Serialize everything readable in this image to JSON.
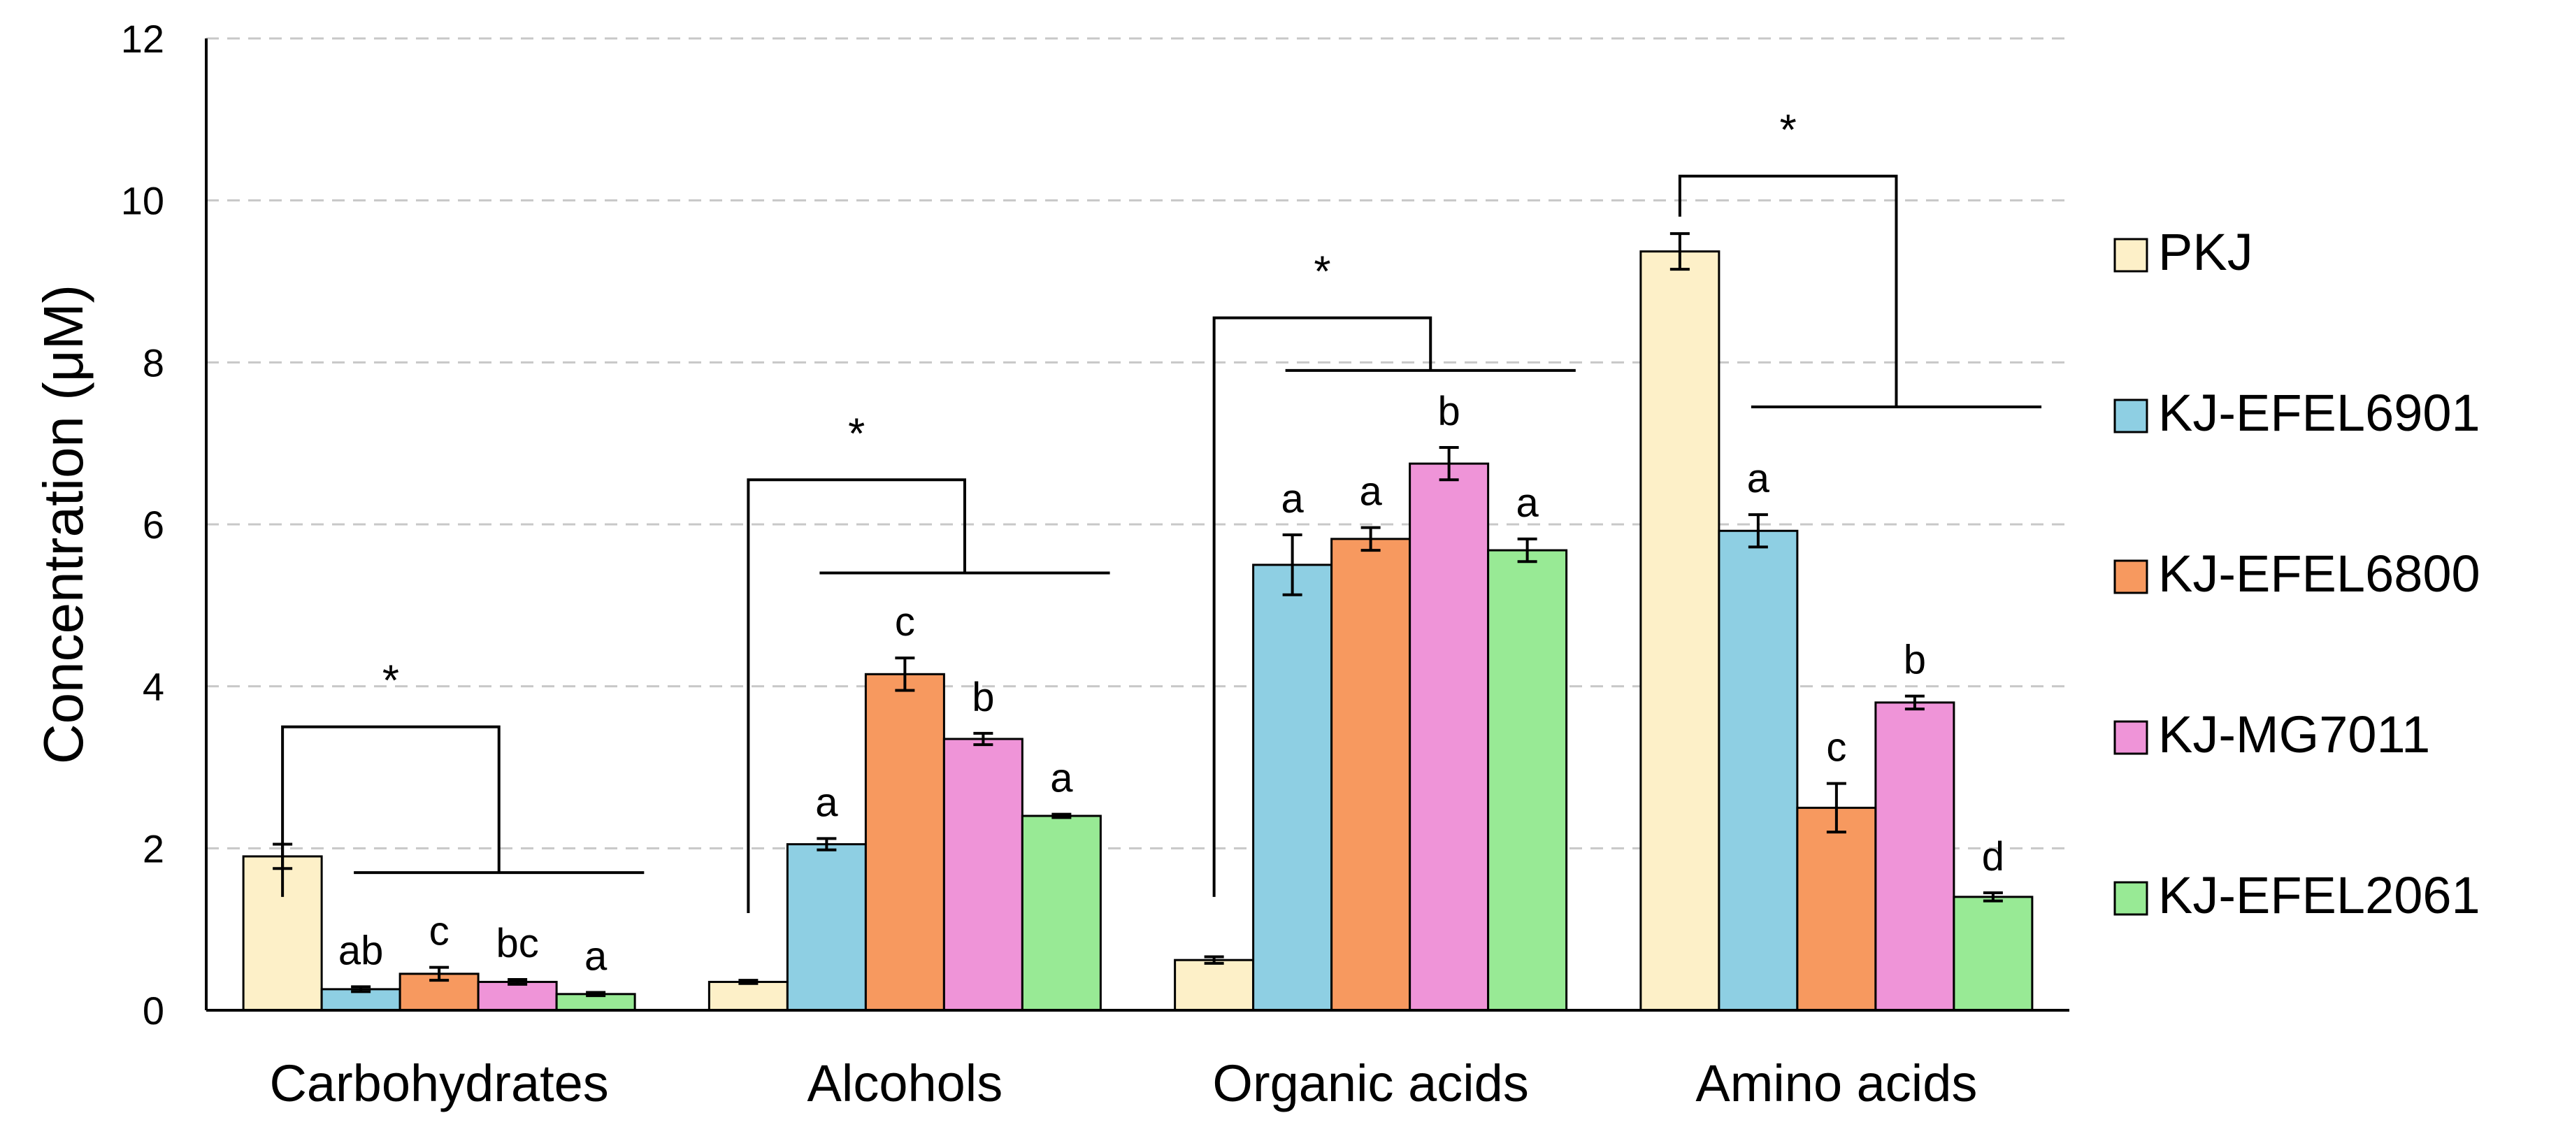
{
  "chart_data": {
    "type": "bar",
    "ylabel": "Concentration (μM)",
    "ylim": [
      0,
      12
    ],
    "yticks": [
      0,
      2,
      4,
      6,
      8,
      10,
      12
    ],
    "grid": "horizontal-dashed",
    "legend_position": "right",
    "categories": [
      "Carbohydrates",
      "Alcohols",
      "Organic acids",
      "Amino acids"
    ],
    "series": [
      {
        "name": "PKJ",
        "color": "#fdf0c8",
        "values": [
          1.9,
          0.35,
          0.62,
          9.37
        ],
        "errors": [
          0.15,
          0.02,
          0.04,
          0.22
        ],
        "letters": [
          "",
          "",
          "",
          ""
        ]
      },
      {
        "name": "KJ-EFEL6901",
        "color": "#8ecfe3",
        "values": [
          0.26,
          2.05,
          5.5,
          5.92
        ],
        "errors": [
          0.03,
          0.07,
          0.37,
          0.2
        ],
        "letters": [
          "ab",
          "a",
          "a",
          "a"
        ]
      },
      {
        "name": "KJ-EFEL6800",
        "color": "#f7995f",
        "values": [
          0.45,
          4.15,
          5.82,
          2.5
        ],
        "errors": [
          0.08,
          0.2,
          0.14,
          0.3
        ],
        "letters": [
          "c",
          "c",
          "a",
          "c"
        ]
      },
      {
        "name": "KJ-MG7011",
        "color": "#ef94d8",
        "values": [
          0.35,
          3.35,
          6.75,
          3.8
        ],
        "errors": [
          0.03,
          0.07,
          0.2,
          0.08
        ],
        "letters": [
          "bc",
          "b",
          "b",
          "b"
        ]
      },
      {
        "name": "KJ-EFEL2061",
        "color": "#98ea95",
        "values": [
          0.2,
          2.4,
          5.68,
          1.4
        ],
        "errors": [
          0.02,
          0.02,
          0.14,
          0.05
        ],
        "letters": [
          "a",
          "a",
          "a",
          "d"
        ]
      }
    ],
    "significance": [
      {
        "category": 0,
        "label": "*",
        "left_y": 1.4,
        "top_y": 3.5,
        "line_y": 1.7,
        "left_x_cat": 0.15,
        "line_span": [
          0.3,
          0.97
        ]
      },
      {
        "category": 1,
        "label": "*",
        "left_y": 1.2,
        "top_y": 6.55,
        "line_y": 5.4,
        "left_x_cat": 0.1,
        "line_span": [
          0.3,
          0.97
        ]
      },
      {
        "category": 2,
        "label": "*",
        "left_y": 1.4,
        "top_y": 8.55,
        "line_y": 7.9,
        "left_x_cat": 0.1,
        "line_span": [
          0.3,
          0.97
        ]
      },
      {
        "category": 3,
        "label": "*",
        "left_y": 9.8,
        "top_y": 10.3,
        "line_y": 7.45,
        "left_x_cat": 0.1,
        "line_span": [
          0.3,
          0.97
        ]
      }
    ]
  }
}
